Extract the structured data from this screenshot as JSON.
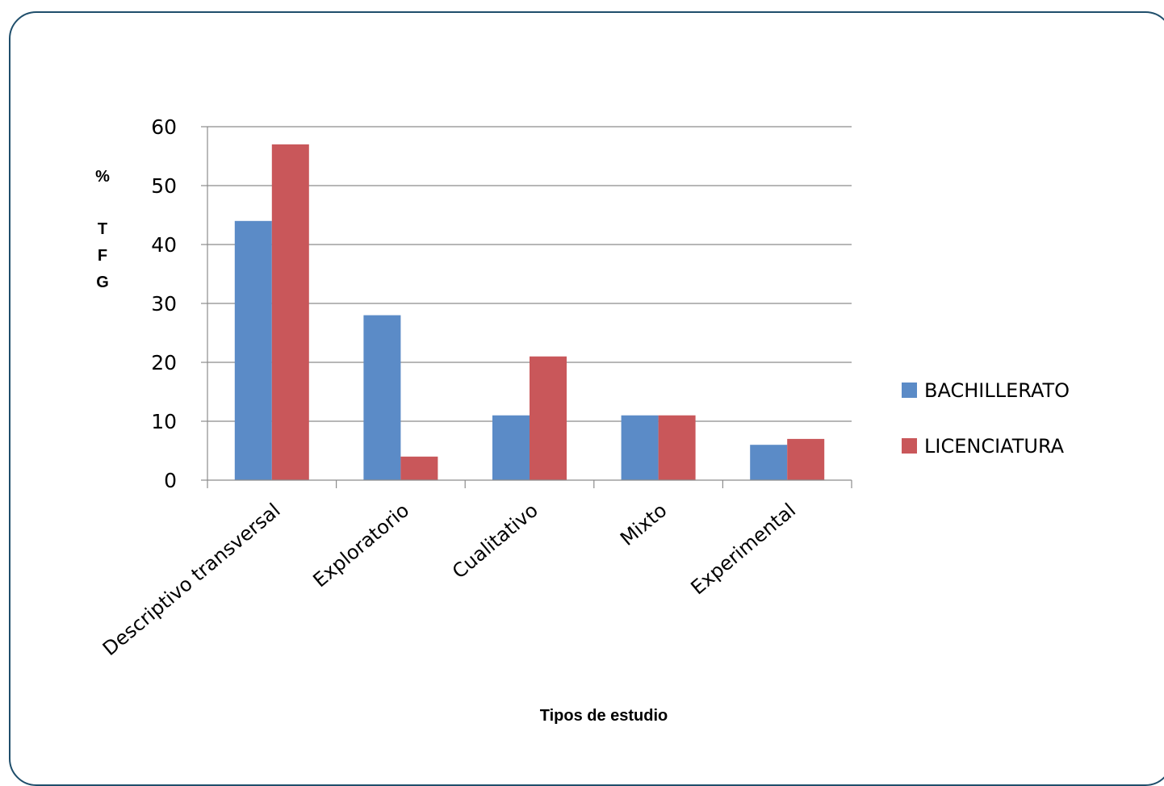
{
  "chart_data": {
    "type": "bar",
    "categories": [
      "Descriptivo transversal",
      "Exploratorio",
      "Cualitativo",
      "Mixto",
      "Experimental"
    ],
    "series": [
      {
        "name": "BACHILLERATO",
        "values": [
          44,
          28,
          11,
          11,
          6
        ],
        "color": "#5b8bc7"
      },
      {
        "name": "LICENCIATURA",
        "values": [
          57,
          4,
          21,
          11,
          7
        ],
        "color": "#c9575a"
      }
    ],
    "title": "",
    "xlabel": "Tipos de estudio",
    "ylabel": "% TFG",
    "ylabel_lines": [
      "%",
      "T",
      "F",
      "G"
    ],
    "ylim": [
      0,
      60
    ],
    "yticks": [
      0,
      10,
      20,
      30,
      40,
      50,
      60
    ],
    "grid": true,
    "legend_position": "right"
  }
}
